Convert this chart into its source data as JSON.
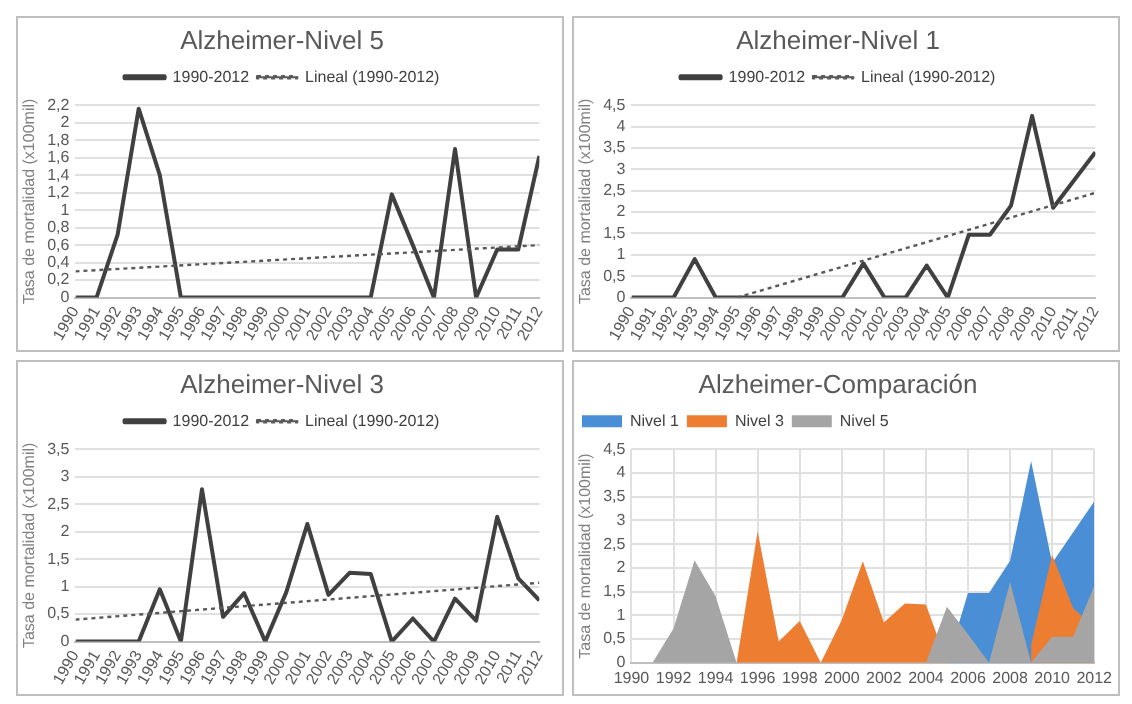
{
  "chart_data": [
    {
      "type": "line",
      "title": "Alzheimer-Nivel 5",
      "ylabel": "Tasa de mortalidad (x100mil)",
      "x": [
        1990,
        1991,
        1992,
        1993,
        1994,
        1995,
        1996,
        1997,
        1998,
        1999,
        2000,
        2001,
        2002,
        2003,
        2004,
        2005,
        2006,
        2007,
        2008,
        2009,
        2010,
        2011,
        2012
      ],
      "xlim": [
        1990,
        2012
      ],
      "xticks": [
        1990,
        1991,
        1992,
        1993,
        1994,
        1995,
        1996,
        1997,
        1998,
        1999,
        2000,
        2001,
        2002,
        2003,
        2004,
        2005,
        2006,
        2007,
        2008,
        2009,
        2010,
        2011,
        2012
      ],
      "ylim": [
        0,
        2.2
      ],
      "yticks": [
        0,
        {
          "value": 0.2,
          "label": "0,2"
        },
        {
          "value": 0.4,
          "label": "0,4"
        },
        {
          "value": 0.6,
          "label": "0,6"
        },
        {
          "value": 0.8,
          "label": "0,8"
        },
        1,
        {
          "value": 1.2,
          "label": "1,2"
        },
        {
          "value": 1.4,
          "label": "1,4"
        },
        {
          "value": 1.6,
          "label": "1,6"
        },
        {
          "value": 1.8,
          "label": "1,8"
        },
        2,
        {
          "value": 2.2,
          "label": "2,2"
        }
      ],
      "grid": "y",
      "legend": "top",
      "marker": "none",
      "series": [
        {
          "name": "1990-2012",
          "color": "#404040",
          "line_style": "solid",
          "values": [
            0,
            0,
            0.72,
            2.16,
            1.4,
            0,
            0,
            0,
            0,
            0,
            0,
            0,
            0,
            0,
            0,
            1.18,
            0.6,
            0,
            1.7,
            0,
            0.55,
            0.55,
            1.62
          ]
        },
        {
          "name": "Lineal (1990-2012)",
          "color": "#595959",
          "line_style": "dotted",
          "x": [
            1990,
            2012
          ],
          "values": [
            0.3,
            0.6
          ]
        }
      ]
    },
    {
      "type": "line",
      "title": "Alzheimer-Nivel 1",
      "ylabel": "Tasa de mortalidad (x100mil)",
      "x": [
        1990,
        1991,
        1992,
        1993,
        1994,
        1995,
        1996,
        1997,
        1998,
        1999,
        2000,
        2001,
        2002,
        2003,
        2004,
        2005,
        2006,
        2007,
        2008,
        2009,
        2010,
        2011,
        2012
      ],
      "xlim": [
        1990,
        2012
      ],
      "xticks": [
        1990,
        1991,
        1992,
        1993,
        1994,
        1995,
        1996,
        1997,
        1998,
        1999,
        2000,
        2001,
        2002,
        2003,
        2004,
        2005,
        2006,
        2007,
        2008,
        2009,
        2010,
        2011,
        2012
      ],
      "ylim": [
        0,
        4.5
      ],
      "yticks": [
        0,
        {
          "value": 0.5,
          "label": "0,5"
        },
        1,
        {
          "value": 1.5,
          "label": "1,5"
        },
        2,
        {
          "value": 2.5,
          "label": "2,5"
        },
        3,
        {
          "value": 3.5,
          "label": "3,5"
        },
        4,
        {
          "value": 4.5,
          "label": "4,5"
        }
      ],
      "grid": "y",
      "legend": "top",
      "marker": "none",
      "series": [
        {
          "name": "1990-2012",
          "color": "#404040",
          "line_style": "solid",
          "values": [
            0,
            0,
            0,
            0.9,
            0,
            0,
            0,
            0,
            0,
            0,
            0,
            0.8,
            0,
            0,
            0.75,
            0,
            1.47,
            1.47,
            2.15,
            4.25,
            2.1,
            2.75,
            3.4
          ]
        },
        {
          "name": "Lineal (1990-2012)",
          "color": "#595959",
          "line_style": "dotted",
          "x": [
            1995,
            2012
          ],
          "values": [
            0,
            2.45
          ]
        }
      ]
    },
    {
      "type": "line",
      "title": "Alzheimer-Nivel 3",
      "ylabel": "Tasa de mortalidad (x100mil)",
      "x": [
        1990,
        1991,
        1992,
        1993,
        1994,
        1995,
        1996,
        1997,
        1998,
        1999,
        2000,
        2001,
        2002,
        2003,
        2004,
        2005,
        2006,
        2007,
        2008,
        2009,
        2010,
        2011,
        2012
      ],
      "xlim": [
        1990,
        2012
      ],
      "xticks": [
        1990,
        1991,
        1992,
        1993,
        1994,
        1995,
        1996,
        1997,
        1998,
        1999,
        2000,
        2001,
        2002,
        2003,
        2004,
        2005,
        2006,
        2007,
        2008,
        2009,
        2010,
        2011,
        2012
      ],
      "ylim": [
        0,
        3.5
      ],
      "yticks": [
        0,
        {
          "value": 0.5,
          "label": "0,5"
        },
        1,
        {
          "value": 1.5,
          "label": "1,5"
        },
        2,
        {
          "value": 2.5,
          "label": "2,5"
        },
        3,
        {
          "value": 3.5,
          "label": "3,5"
        }
      ],
      "grid": "y",
      "legend": "top",
      "marker": "none",
      "series": [
        {
          "name": "1990-2012",
          "color": "#404040",
          "line_style": "solid",
          "values": [
            0,
            0,
            0,
            0,
            0.95,
            0,
            2.77,
            0.45,
            0.88,
            0,
            0.9,
            2.14,
            0.85,
            1.25,
            1.23,
            0,
            0.42,
            0,
            0.78,
            0.38,
            2.27,
            1.15,
            0.75
          ]
        },
        {
          "name": "Lineal (1990-2012)",
          "color": "#595959",
          "line_style": "dotted",
          "x": [
            1990,
            2012
          ],
          "values": [
            0.4,
            1.07
          ]
        }
      ]
    },
    {
      "type": "area",
      "title": "Alzheimer-Comparación",
      "ylabel": "Tasa de mortalidad (x100mil)",
      "x": [
        1990,
        1991,
        1992,
        1993,
        1994,
        1995,
        1996,
        1997,
        1998,
        1999,
        2000,
        2001,
        2002,
        2003,
        2004,
        2005,
        2006,
        2007,
        2008,
        2009,
        2010,
        2011,
        2012
      ],
      "xlim": [
        1990,
        2012
      ],
      "xticks": [
        1990,
        1992,
        1994,
        1996,
        1998,
        2000,
        2002,
        2004,
        2006,
        2008,
        2010,
        2012
      ],
      "ylim": [
        0,
        4.5
      ],
      "yticks": [
        0,
        {
          "value": 0.5,
          "label": "0,5"
        },
        1,
        {
          "value": 1.5,
          "label": "1,5"
        },
        2,
        {
          "value": 2.5,
          "label": "2,5"
        },
        3,
        {
          "value": 3.5,
          "label": "3,5"
        },
        4,
        {
          "value": 4.5,
          "label": "4,5"
        }
      ],
      "grid": true,
      "legend": "top left",
      "series": [
        {
          "name": "Nivel 1",
          "color": "#4a8fd6",
          "values": [
            null,
            null,
            null,
            null,
            null,
            null,
            null,
            null,
            null,
            null,
            null,
            null,
            null,
            null,
            null,
            0,
            1.47,
            1.47,
            2.15,
            4.25,
            2.1,
            2.75,
            3.4
          ]
        },
        {
          "name": "Nivel 3",
          "color": "#ed7d31",
          "values": [
            null,
            null,
            null,
            null,
            null,
            0,
            2.77,
            0.45,
            0.88,
            0,
            0.9,
            2.14,
            0.85,
            1.25,
            1.23,
            0,
            null,
            null,
            null,
            0.38,
            2.27,
            1.15,
            0.75
          ]
        },
        {
          "name": "Nivel 5",
          "color": "#a5a5a5",
          "values": [
            0,
            0,
            0.72,
            2.16,
            1.4,
            0,
            0,
            0,
            0,
            0,
            0,
            0,
            0,
            0,
            0,
            1.18,
            0.6,
            0,
            1.7,
            0,
            0.55,
            0.55,
            1.62
          ]
        }
      ]
    }
  ]
}
